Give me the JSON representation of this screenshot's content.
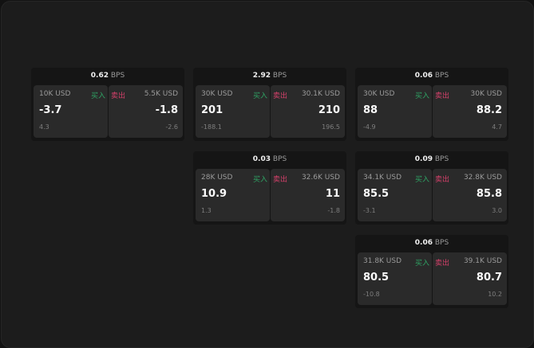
{
  "colors": {
    "buy": "#2fa364",
    "sell": "#d4406a"
  },
  "buy_label": "买入",
  "sell_label": "卖出",
  "unit": "BPS",
  "cards": [
    {
      "spread": "0.62",
      "buy": {
        "size": "10K USD",
        "price": "-3.7",
        "change": "4.3"
      },
      "sell": {
        "size": "5.5K USD",
        "price": "-1.8",
        "change": "-2.6"
      }
    },
    {
      "spread": "2.92",
      "buy": {
        "size": "30K USD",
        "price": "201",
        "change": "-188.1"
      },
      "sell": {
        "size": "30.1K USD",
        "price": "210",
        "change": "196.5"
      }
    },
    {
      "spread": "0.06",
      "buy": {
        "size": "30K USD",
        "price": "88",
        "change": "-4.9"
      },
      "sell": {
        "size": "30K USD",
        "price": "88.2",
        "change": "4.7"
      }
    },
    {
      "spread": "0.03",
      "buy": {
        "size": "28K USD",
        "price": "10.9",
        "change": "1.3"
      },
      "sell": {
        "size": "32.6K USD",
        "price": "11",
        "change": "-1.8"
      }
    },
    {
      "spread": "0.09",
      "buy": {
        "size": "34.1K USD",
        "price": "85.5",
        "change": "-3.1"
      },
      "sell": {
        "size": "32.8K USD",
        "price": "85.8",
        "change": "3.0"
      }
    },
    {
      "spread": "0.06",
      "buy": {
        "size": "31.8K USD",
        "price": "80.5",
        "change": "-10.8"
      },
      "sell": {
        "size": "39.1K USD",
        "price": "80.7",
        "change": "10.2"
      }
    }
  ]
}
